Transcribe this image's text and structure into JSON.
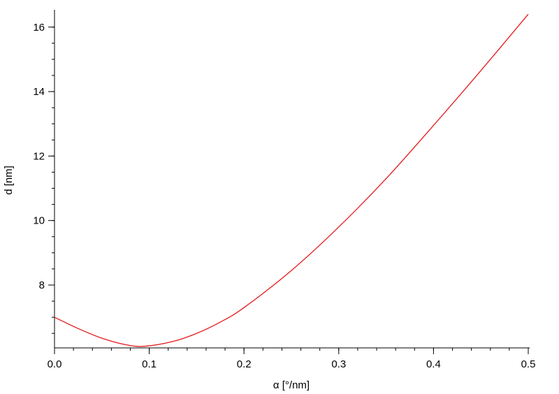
{
  "chart_data": {
    "type": "line",
    "title": "",
    "xlabel": "α [°/nm]",
    "ylabel": "d [nm]",
    "xlim": [
      0.0,
      0.5
    ],
    "ylim": [
      6.05,
      16.45
    ],
    "grid": false,
    "legend": "none",
    "x_ticks": [
      0.0,
      0.1,
      0.2,
      0.3,
      0.4,
      0.5
    ],
    "x_tick_labels": [
      "0.0",
      "0.1",
      "0.2",
      "0.3",
      "0.4",
      "0.5"
    ],
    "y_ticks": [
      8,
      10,
      12,
      14,
      16
    ],
    "y_tick_labels": [
      "8",
      "10",
      "12",
      "14",
      "16"
    ],
    "series": [
      {
        "color": "#e41a1c",
        "x": [
          0.0,
          0.025,
          0.05,
          0.075,
          0.095,
          0.125,
          0.15,
          0.175,
          0.2,
          0.25,
          0.3,
          0.35,
          0.4,
          0.45,
          0.5
        ],
        "y": [
          7.0,
          6.65,
          6.35,
          6.15,
          6.1,
          6.25,
          6.5,
          6.85,
          7.3,
          8.45,
          9.8,
          11.3,
          12.95,
          14.65,
          16.4
        ]
      }
    ]
  }
}
